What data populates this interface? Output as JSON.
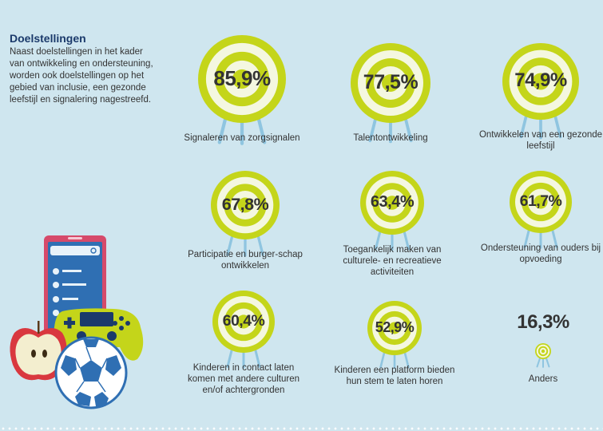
{
  "intro": {
    "title": "Doelstellingen",
    "text": "Naast doelstellingen in het kader van ontwikkeling en ondersteuning, worden ook doelstellingen op het gebied van inclusie, een gezonde leefstijl en signalering nagestreefd."
  },
  "goals": [
    {
      "percent": "85,9%",
      "value": 85.9,
      "label": "Signaleren van zorgsignalen"
    },
    {
      "percent": "77,5%",
      "value": 77.5,
      "label": "Talentontwikkeling"
    },
    {
      "percent": "74,9%",
      "value": 74.9,
      "label": "Ontwikkelen van een gezonde leefstijl"
    },
    {
      "percent": "67,8%",
      "value": 67.8,
      "label": "Participatie en burger-schap ontwikkelen"
    },
    {
      "percent": "63,4%",
      "value": 63.4,
      "label": "Toegankelijk maken van culturele- en recreatieve activiteiten"
    },
    {
      "percent": "61,7%",
      "value": 61.7,
      "label": "Ondersteuning van ouders bij opvoeding"
    },
    {
      "percent": "60,4%",
      "value": 60.4,
      "label": "Kinderen in contact laten komen met andere culturen en/of achtergronden"
    },
    {
      "percent": "52,9%",
      "value": 52.9,
      "label": "Kinderen een platform bieden hun stem te laten horen"
    },
    {
      "percent": "16,3%",
      "value": 16.3,
      "label": "Anders"
    }
  ],
  "colors": {
    "ring": "#c4d51a",
    "ring_light": "#f4f7e0",
    "easel": "#8fc5e0",
    "background": "#cfe6ef",
    "title": "#1b3a6b"
  },
  "icons": [
    "tablet-icon",
    "game-controller-icon",
    "apple-icon",
    "football-icon",
    "target-icon",
    "easel-stand-icon"
  ]
}
